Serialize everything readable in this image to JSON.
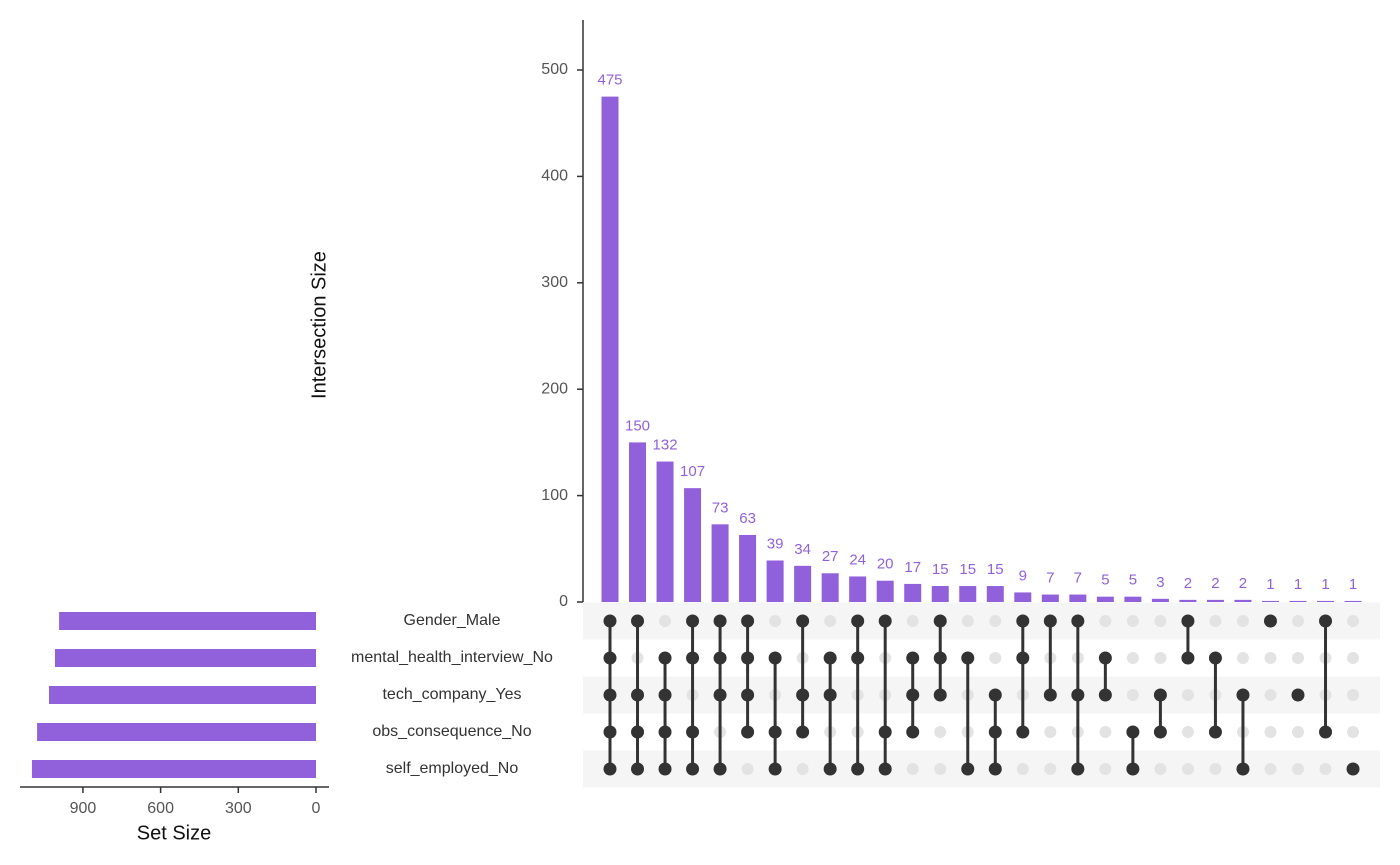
{
  "chart_data": {
    "type": "upset",
    "y_label": "Intersection Size",
    "set_size_label": "Set Size",
    "color": "#9161dc",
    "sets": [
      "Gender_Male",
      "mental_health_interview_No",
      "tech_company_Yes",
      "obs_consequence_No",
      "self_employed_No"
    ],
    "set_sizes": [
      992,
      1008,
      1031,
      1077,
      1097
    ],
    "set_xlim": [
      0,
      1143
    ],
    "set_xticks": [
      900,
      600,
      300,
      0
    ],
    "values": [
      475,
      150,
      132,
      107,
      73,
      63,
      39,
      34,
      27,
      24,
      20,
      17,
      15,
      15,
      15,
      9,
      7,
      7,
      5,
      5,
      3,
      2,
      2,
      2,
      1,
      1,
      1,
      1
    ],
    "members": [
      [
        0,
        1,
        2,
        3,
        4
      ],
      [
        0,
        2,
        3,
        4
      ],
      [
        1,
        2,
        3,
        4
      ],
      [
        0,
        1,
        3,
        4
      ],
      [
        0,
        1,
        2,
        4
      ],
      [
        0,
        1,
        2,
        3
      ],
      [
        1,
        3,
        4
      ],
      [
        0,
        2,
        3
      ],
      [
        1,
        2,
        4
      ],
      [
        0,
        1,
        4
      ],
      [
        0,
        3,
        4
      ],
      [
        1,
        2,
        3
      ],
      [
        0,
        1,
        2
      ],
      [
        1,
        4
      ],
      [
        2,
        3,
        4
      ],
      [
        0,
        1,
        3
      ],
      [
        0,
        2
      ],
      [
        0,
        2,
        4
      ],
      [
        1,
        2
      ],
      [
        3,
        4
      ],
      [
        2,
        3
      ],
      [
        0,
        1
      ],
      [
        1,
        3
      ],
      [
        2,
        4
      ],
      [
        0
      ],
      [
        2
      ],
      [
        0,
        3
      ],
      [
        4
      ]
    ],
    "ylim": [
      0,
      547
    ],
    "yticks": [
      0,
      100,
      200,
      300,
      400,
      500
    ]
  }
}
